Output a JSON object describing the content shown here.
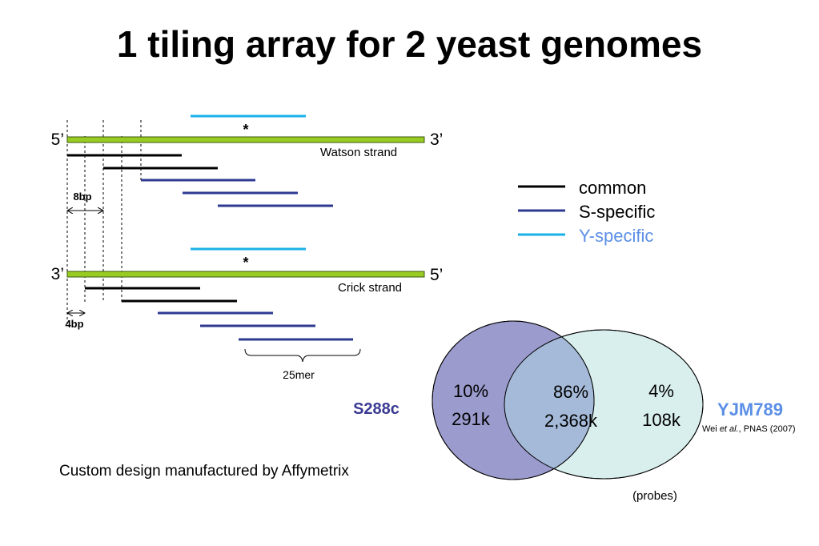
{
  "title": "1 tiling array for 2 yeast genomes",
  "strands": {
    "watson": {
      "left_end": "5’",
      "right_end": "3’",
      "label": "Watson strand",
      "snp_marker": "*"
    },
    "crick": {
      "left_end": "3’",
      "right_end": "5’",
      "label": "Crick strand",
      "snp_marker": "*"
    }
  },
  "dimensions": {
    "offset_watson": "8bp",
    "offset_crick": "4bp",
    "probe_length": "25mer"
  },
  "legend": [
    {
      "label": "common",
      "color": "#000000",
      "text_color": "#000000"
    },
    {
      "label": "S-specific",
      "color": "#2e3a92",
      "text_color": "#000000"
    },
    {
      "label": "Y-specific",
      "color": "#1ab0e8",
      "text_color": "#5b8fe6"
    }
  ],
  "colors": {
    "strand": "#99cc22",
    "common": "#000000",
    "s_specific": "#2e3a92",
    "y_specific": "#1ab0e8",
    "venn_s_fill": "#9b9bce",
    "venn_y_fill": "#d9efee",
    "venn_overlap_fill": "#a5bad8",
    "s288c_label": "#3a3a94",
    "yjm789_label": "#5b8fe6"
  },
  "venn": {
    "s288c": {
      "name": "S288c",
      "percent": "10%",
      "count": "291k"
    },
    "overlap": {
      "percent": "86%",
      "count": "2,368k"
    },
    "yjm789": {
      "name": "YJM789",
      "percent": "4%",
      "count": "108k"
    },
    "citation": {
      "authors": "Wei ",
      "etal": "et al.",
      "rest": ", PNAS (2007)"
    },
    "unit_note": "(probes)"
  },
  "footer": "Custom design manufactured by Affymetrix"
}
